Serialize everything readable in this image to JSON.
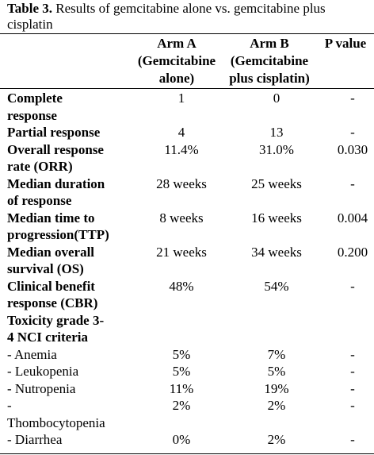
{
  "caption": {
    "label": "Table 3.",
    "text": " Results of gemcitabine alone vs. gemcitabine plus cisplatin"
  },
  "header": {
    "arm_a": [
      "Arm A",
      "(Gemcitabine",
      "alone)"
    ],
    "arm_b": [
      "Arm B",
      "(Gemcitabine",
      "plus cisplatin)"
    ],
    "p_value": "P value"
  },
  "rows": [
    {
      "label": [
        "Complete",
        "response"
      ],
      "bold": true,
      "a": "1",
      "b": "0",
      "p": "-"
    },
    {
      "label": [
        "Partial response"
      ],
      "bold": true,
      "a": "4",
      "b": "13",
      "p": "-"
    },
    {
      "label": [
        "Overall response",
        "rate (ORR)"
      ],
      "bold": true,
      "a": "11.4%",
      "b": "31.0%",
      "p": "0.030"
    },
    {
      "label": [
        "Median duration",
        "of response"
      ],
      "bold": true,
      "a": "28 weeks",
      "b": "25 weeks",
      "p": "-"
    },
    {
      "label": [
        "Median time to",
        "progression(TTP)"
      ],
      "bold": true,
      "a": "8 weeks",
      "b": "16 weeks",
      "p": "0.004"
    },
    {
      "label": [
        "Median overall",
        "survival (OS)"
      ],
      "bold": true,
      "a": "21 weeks",
      "b": "34 weeks",
      "p": "0.200"
    },
    {
      "label": [
        "Clinical benefit",
        "response (CBR)"
      ],
      "bold": true,
      "a": "48%",
      "b": "54%",
      "p": "-"
    },
    {
      "label": [
        "Toxicity grade 3-",
        "4 NCI criteria"
      ],
      "bold": true,
      "a": "",
      "b": "",
      "p": ""
    },
    {
      "label": [
        "- Anemia"
      ],
      "bold": false,
      "a": "5%",
      "b": "7%",
      "p": "-"
    },
    {
      "label": [
        "- Leukopenia"
      ],
      "bold": false,
      "a": "5%",
      "b": "5%",
      "p": "-"
    },
    {
      "label": [
        "- Nutropenia"
      ],
      "bold": false,
      "a": "11%",
      "b": "19%",
      "p": "-"
    },
    {
      "label": [
        "-",
        "Thombocytopenia"
      ],
      "bold": false,
      "a": "2%",
      "b": "2%",
      "p": "-"
    },
    {
      "label": [
        "- Diarrhea"
      ],
      "bold": false,
      "a": "0%",
      "b": "2%",
      "p": "-"
    }
  ]
}
